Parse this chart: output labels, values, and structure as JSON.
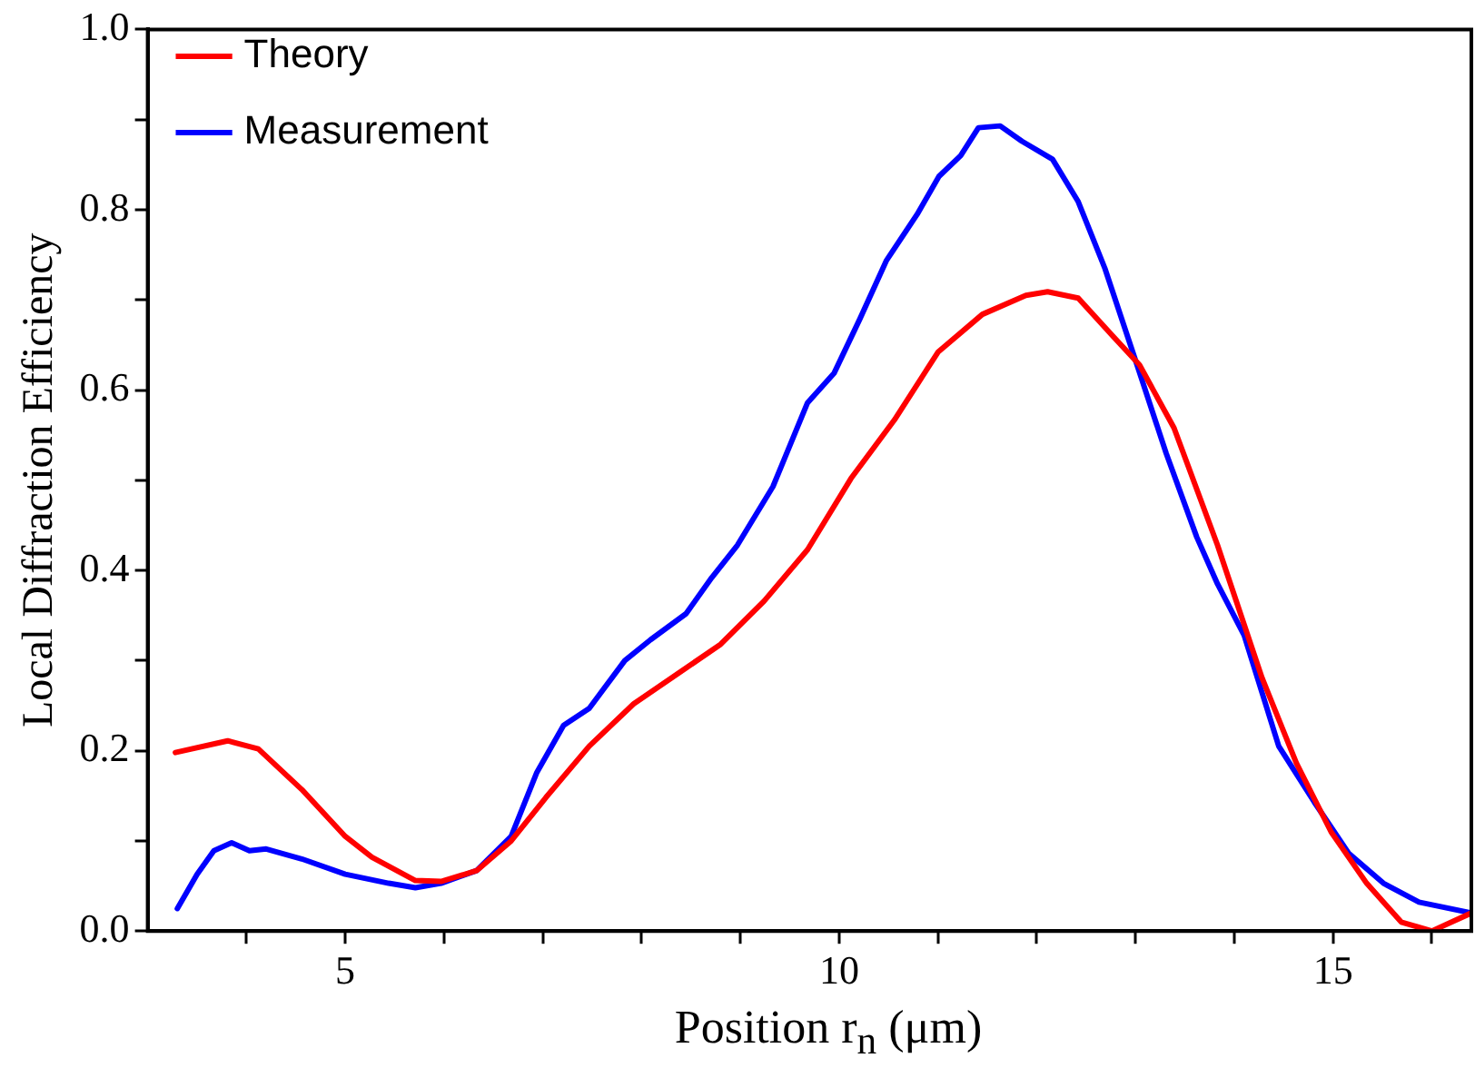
{
  "chart_data": {
    "type": "line",
    "xlabel": "Position r$_{n}$ (μm)",
    "ylabel": "Local Diffraction Efficiency",
    "xlim": [
      3,
      16.4
    ],
    "ylim": [
      0,
      1.0
    ],
    "xticks": [
      {
        "value": 4,
        "label": null
      },
      5,
      {
        "value": 6,
        "label": null
      },
      {
        "value": 7,
        "label": null
      },
      {
        "value": 8,
        "label": null
      },
      {
        "value": 9,
        "label": null
      },
      10,
      {
        "value": 11,
        "label": null
      },
      {
        "value": 12,
        "label": null
      },
      {
        "value": 13,
        "label": null
      },
      {
        "value": 14,
        "label": null
      },
      15,
      {
        "value": 16,
        "label": null
      }
    ],
    "yticks": [
      {
        "value": 0,
        "label": "0.0"
      },
      {
        "value": 0.1,
        "label": null
      },
      0.2,
      {
        "value": 0.3,
        "label": null
      },
      0.4,
      {
        "value": 0.5,
        "label": null
      },
      0.6,
      {
        "value": 0.7,
        "label": null
      },
      0.8,
      {
        "value": 0.9,
        "label": null
      },
      {
        "value": 1,
        "label": "1.0"
      }
    ],
    "grid": false,
    "legend": "top left",
    "marker": "none",
    "line_style": "solid",
    "series": [
      {
        "name": "Theory",
        "color": "#ff0000",
        "x": [
          3.28,
          3.81,
          4.12,
          4.56,
          5.0,
          5.27,
          5.71,
          5.97,
          6.33,
          6.68,
          7.03,
          7.47,
          7.92,
          8.36,
          8.8,
          9.24,
          9.68,
          10.12,
          10.56,
          11.0,
          11.45,
          11.89,
          12.11,
          12.42,
          12.77,
          13.04,
          13.39,
          13.83,
          14.28,
          14.63,
          14.98,
          15.34,
          15.69,
          16.0,
          16.4
        ],
        "values": [
          0.198,
          0.211,
          0.202,
          0.157,
          0.105,
          0.082,
          0.056,
          0.055,
          0.067,
          0.1,
          0.148,
          0.205,
          0.252,
          0.285,
          0.318,
          0.366,
          0.423,
          0.502,
          0.567,
          0.642,
          0.684,
          0.705,
          0.709,
          0.702,
          0.66,
          0.628,
          0.558,
          0.428,
          0.281,
          0.186,
          0.11,
          0.053,
          0.01,
          0.0,
          0.02
        ]
      },
      {
        "name": "Measurement",
        "color": "#0000ff",
        "x": [
          3.3,
          3.5,
          3.67,
          3.85,
          4.03,
          4.2,
          4.56,
          5.0,
          5.44,
          5.71,
          5.97,
          6.33,
          6.68,
          6.94,
          7.21,
          7.47,
          7.83,
          8.09,
          8.45,
          8.71,
          8.97,
          9.33,
          9.68,
          9.95,
          10.21,
          10.48,
          10.79,
          11.01,
          11.23,
          11.41,
          11.63,
          11.85,
          12.16,
          12.42,
          12.69,
          13.0,
          13.31,
          13.62,
          13.83,
          14.1,
          14.45,
          14.81,
          15.16,
          15.51,
          15.87,
          16.4
        ],
        "values": [
          0.025,
          0.063,
          0.089,
          0.098,
          0.089,
          0.091,
          0.08,
          0.063,
          0.053,
          0.048,
          0.053,
          0.067,
          0.105,
          0.176,
          0.228,
          0.247,
          0.3,
          0.323,
          0.352,
          0.392,
          0.428,
          0.493,
          0.586,
          0.619,
          0.679,
          0.744,
          0.795,
          0.837,
          0.86,
          0.891,
          0.893,
          0.876,
          0.856,
          0.809,
          0.735,
          0.633,
          0.53,
          0.437,
          0.385,
          0.328,
          0.205,
          0.143,
          0.086,
          0.053,
          0.032,
          0.02
        ]
      }
    ]
  }
}
